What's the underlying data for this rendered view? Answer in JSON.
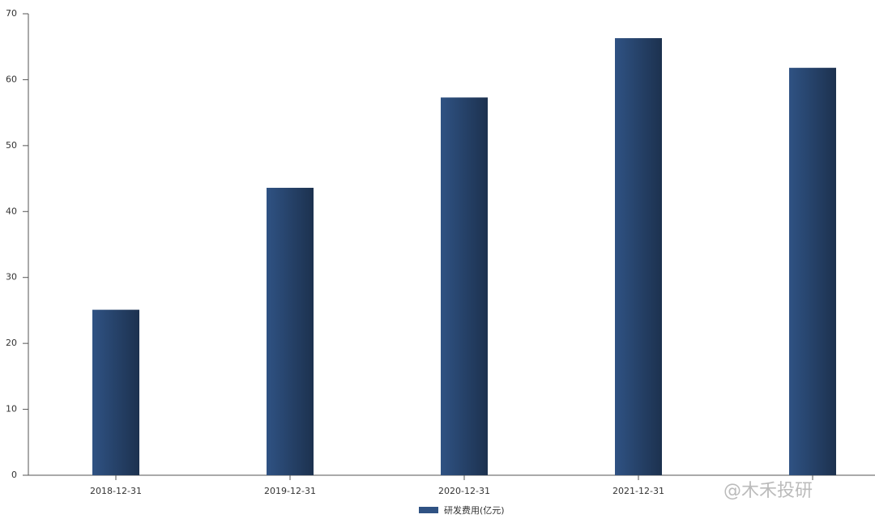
{
  "chart_data": {
    "type": "bar",
    "categories": [
      "2018-12-31",
      "2019-12-31",
      "2020-12-31",
      "2021-12-31",
      null
    ],
    "series": [
      {
        "name": "研发费用(亿元)",
        "color": "#2f5283",
        "values": [
          25.1,
          43.6,
          57.3,
          66.3,
          61.8
        ]
      }
    ],
    "ylim": [
      0,
      70
    ],
    "yticks": [
      0,
      10,
      20,
      30,
      40,
      50,
      60,
      70
    ],
    "legend": "bottom",
    "watermark": "@木禾投研"
  }
}
